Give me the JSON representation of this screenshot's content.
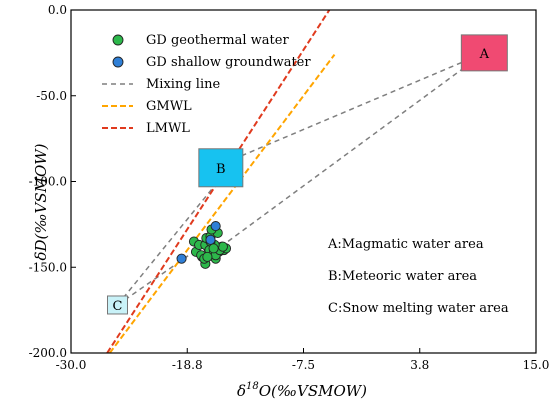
{
  "chart_data": {
    "type": "scatter",
    "xlabel": {
      "base": "δ",
      "sup": "18",
      "rest": "O(‰VSMOW)"
    },
    "ylabel": "δD(‰VSMOW)",
    "xlim": [
      -30.0,
      15.0
    ],
    "ylim": [
      -200.0,
      0.0
    ],
    "xticks": [
      "-30.0",
      "-18.8",
      "-7.5",
      "3.8",
      "15.0"
    ],
    "yticks": [
      "0.0",
      "-50.0",
      "-100.0",
      "-150.0",
      "-200.0"
    ],
    "xtick_values": [
      -30.0,
      -18.75,
      -7.5,
      3.75,
      15.0
    ],
    "ytick_values": [
      0.0,
      -50.0,
      -100.0,
      -150.0,
      -200.0
    ],
    "grid": false,
    "legend_position": "top-left",
    "series": [
      {
        "name": "GD geothermal water",
        "kind": "points",
        "color": "#2db84b",
        "x": [
          -18.1,
          -17.9,
          -17.6,
          -17.3,
          -17.0,
          -16.7,
          -16.3,
          -16.0,
          -15.7,
          -15.4,
          -15.2,
          -15.0,
          -17.4,
          -17.0,
          -16.6,
          -16.2,
          -16.0,
          -15.6,
          -15.3,
          -16.9,
          -16.5,
          -16.1,
          -15.8,
          -16.4,
          -17.1,
          -16.8,
          -16.5,
          -16.2
        ],
        "y": [
          -135,
          -141,
          -137,
          -144,
          -148,
          -139,
          -142,
          -145,
          -141,
          -138,
          -140,
          -139,
          -143,
          -137,
          -140,
          -142,
          -143,
          -140,
          -138,
          -133,
          -132,
          -137,
          -130,
          -128,
          -145,
          -144,
          -135,
          -139
        ]
      },
      {
        "name": "GD shallow groundwater",
        "kind": "points",
        "color": "#2f7fd6",
        "x": [
          -19.3,
          -16.5,
          -16.0
        ],
        "y": [
          -145,
          -134,
          -126
        ]
      },
      {
        "name": "Mixing line",
        "kind": "dashed-lines",
        "color": "#7f7f7f",
        "segments": [
          [
            [
              -13.5,
              -85.0
            ],
            [
              10.0,
              -25.0
            ]
          ],
          [
            [
              -15.5,
              -138.0
            ],
            [
              10.0,
              -25.0
            ]
          ],
          [
            [
              -25.5,
              -172.0
            ],
            [
              -15.5,
              -130.0
            ]
          ],
          [
            [
              -25.5,
              -172.0
            ],
            [
              -15.5,
              -98.0
            ]
          ]
        ]
      },
      {
        "name": "GMWL",
        "kind": "line",
        "color": "#ffa500",
        "x": [
          -26.25,
          -4.5
        ],
        "y": [
          -200.0,
          -26.0
        ]
      },
      {
        "name": "LMWL",
        "kind": "line",
        "color": "#e03a1e",
        "x": [
          -26.5,
          -5.0
        ],
        "y": [
          -200.0,
          0.0
        ]
      }
    ],
    "regions": [
      {
        "label": "A",
        "x": 10.0,
        "y": -25.0,
        "fill": "#f04a72"
      },
      {
        "label": "B",
        "x": -15.5,
        "y": -92.0,
        "fill": "#17c2f0"
      },
      {
        "label": "C",
        "x": -25.5,
        "y": -172.0,
        "fill": "#c9f2f8"
      }
    ],
    "annotations": [
      "A:Magmatic water area",
      "B:Meteoric water area",
      "C:Snow melting water area"
    ]
  }
}
